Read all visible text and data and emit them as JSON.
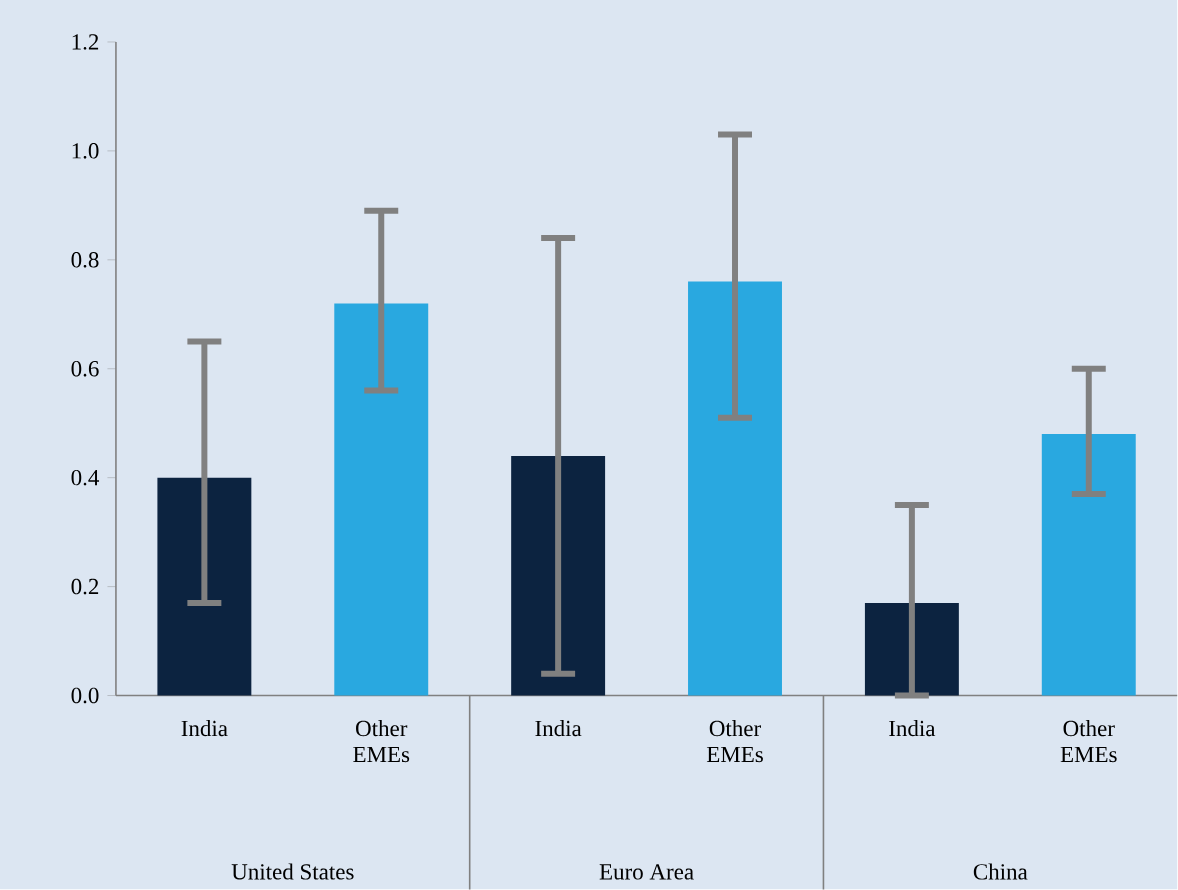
{
  "chart_data": {
    "type": "bar",
    "categories": [
      "India",
      "Other EMEs",
      "India",
      "Other EMEs",
      "India",
      "Other EMEs"
    ],
    "values": [
      0.4,
      0.72,
      0.44,
      0.76,
      0.17,
      0.48
    ],
    "colors": [
      "#0c2340",
      "#29a8e0",
      "#0c2340",
      "#29a8e0",
      "#0c2340",
      "#29a8e0"
    ],
    "errors": [
      [
        0.17,
        0.65
      ],
      [
        0.56,
        0.89
      ],
      [
        0.04,
        0.84
      ],
      [
        0.51,
        1.03
      ],
      [
        0.0,
        0.35
      ],
      [
        0.37,
        0.6
      ]
    ],
    "ylim": [
      0,
      1.2
    ],
    "yticks": [
      {
        "value": 0,
        "label": "0.0"
      },
      {
        "value": 0.2,
        "label": "0.2"
      },
      {
        "value": 0.4,
        "label": "0.4"
      },
      {
        "value": 0.6,
        "label": "0.6"
      },
      {
        "value": 0.8,
        "label": "0.8"
      },
      {
        "value": 1.0,
        "label": "1.0"
      },
      {
        "value": 1.2,
        "label": "1.2"
      }
    ],
    "annotations": [
      "United States",
      "Euro Area",
      "China"
    ],
    "grid": false
  }
}
